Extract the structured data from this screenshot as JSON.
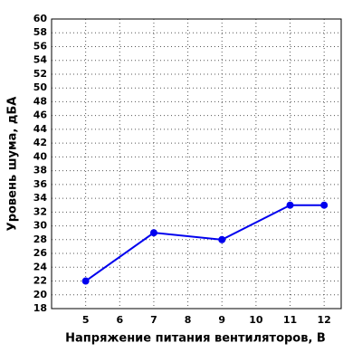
{
  "chart_data": {
    "type": "line",
    "x_label": "Напряжение питания вентиляторов, В",
    "y_label": "Уровень шума, дБА",
    "x": [
      5,
      7,
      9,
      11,
      12
    ],
    "series": [
      {
        "color": "#0000ee",
        "values": [
          22,
          29,
          28,
          33,
          33
        ]
      }
    ],
    "xlim": [
      4,
      12.5
    ],
    "xticks": [
      5,
      6,
      7,
      8,
      9,
      10,
      11,
      12
    ],
    "ylim": [
      18,
      60
    ],
    "yticks": [
      18,
      20,
      22,
      24,
      26,
      28,
      30,
      32,
      34,
      36,
      38,
      40,
      42,
      44,
      46,
      48,
      50,
      52,
      54,
      56,
      58,
      60
    ],
    "grid": true
  }
}
